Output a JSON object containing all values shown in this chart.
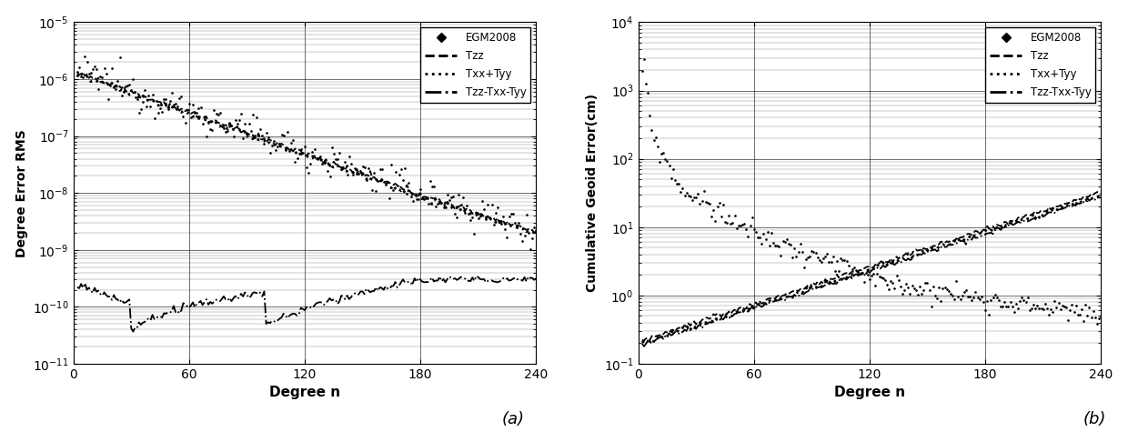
{
  "fig_width": 12.4,
  "fig_height": 4.75,
  "dpi": 100,
  "label_a": "(a)",
  "label_b": "(b)",
  "xlabel": "Degree n",
  "ylabel_left": "Degree Error RMS",
  "ylabel_right": "Cumulative Geoid Error(cm)",
  "xlim": [
    0,
    240
  ],
  "xticks": [
    0,
    60,
    120,
    180,
    240
  ],
  "left_ylim": [
    1e-11,
    1e-05
  ],
  "right_ylim": [
    0.1,
    10000.0
  ],
  "legend_labels": [
    "EGM2008",
    "Tzz",
    "Txx+Tyy",
    "Tzz-Txx-Tyy"
  ],
  "background_color": "#ffffff",
  "line_color": "#000000"
}
